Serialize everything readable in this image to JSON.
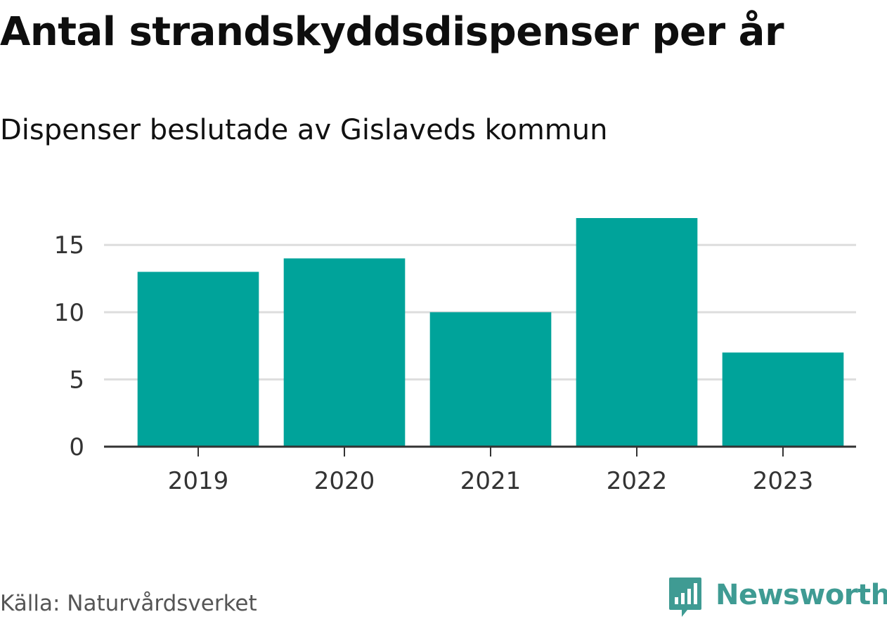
{
  "header": {
    "title": "Antal strandskyddsdispenser per år",
    "subtitle": "Dispenser beslutade av Gislaveds kommun"
  },
  "footer": {
    "source": "Källa: Naturvårdsverket",
    "brand": "Newsworthy"
  },
  "colors": {
    "bar": "#00a39a",
    "grid": "#dddddd",
    "axis": "#333333",
    "brand": "#3f9b93"
  },
  "chart_data": {
    "type": "bar",
    "categories": [
      "2019",
      "2020",
      "2021",
      "2022",
      "2023"
    ],
    "values": [
      13,
      14,
      10,
      17,
      7
    ],
    "yticks": [
      0,
      5,
      10,
      15
    ],
    "ylim": [
      0,
      17
    ],
    "grid": true
  }
}
